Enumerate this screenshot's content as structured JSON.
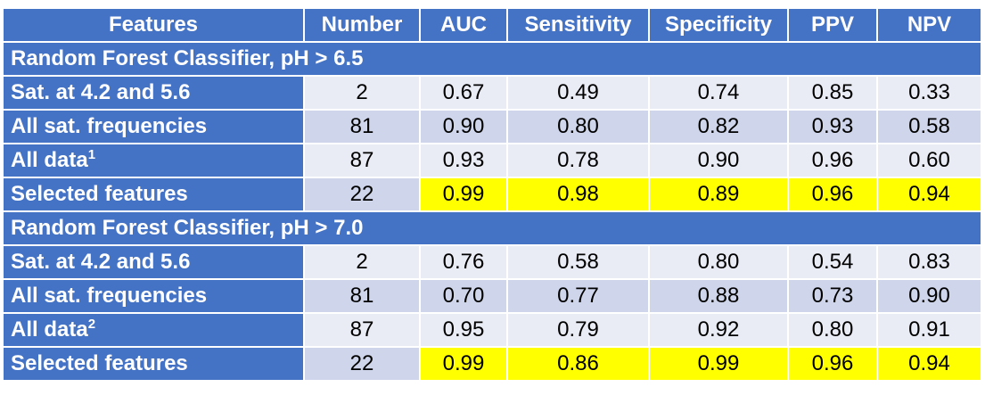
{
  "table": {
    "header": [
      "Features",
      "Number",
      "AUC",
      "Sensitivity",
      "Specificity",
      "PPV",
      "NPV"
    ],
    "sections": [
      {
        "title": "Random Forest Classifier, pH > 6.5",
        "rows": [
          {
            "label": "Sat. at 4.2 and 5.6",
            "cells": [
              "2",
              "0.67",
              "0.49",
              "0.74",
              "0.85",
              "0.33"
            ],
            "highlight": false
          },
          {
            "label": "All sat. frequencies",
            "cells": [
              "81",
              "0.90",
              "0.80",
              "0.82",
              "0.93",
              "0.58"
            ],
            "highlight": false
          },
          {
            "label": "All data",
            "note": "1",
            "cells": [
              "87",
              "0.93",
              "0.78",
              "0.90",
              "0.96",
              "0.60"
            ],
            "highlight": false
          },
          {
            "label": "Selected features",
            "cells": [
              "22",
              "0.99",
              "0.98",
              "0.89",
              "0.96",
              "0.94"
            ],
            "highlight": true
          }
        ]
      },
      {
        "title": "Random Forest Classifier, pH > 7.0",
        "rows": [
          {
            "label": "Sat. at 4.2 and 5.6",
            "cells": [
              "2",
              "0.76",
              "0.58",
              "0.80",
              "0.54",
              "0.83"
            ],
            "highlight": false
          },
          {
            "label": "All sat. frequencies",
            "cells": [
              "81",
              "0.70",
              "0.77",
              "0.88",
              "0.73",
              "0.90"
            ],
            "highlight": false
          },
          {
            "label": "All data",
            "note": "2",
            "cells": [
              "87",
              "0.95",
              "0.79",
              "0.92",
              "0.80",
              "0.91"
            ],
            "highlight": false
          },
          {
            "label": "Selected features",
            "cells": [
              "22",
              "0.99",
              "0.86",
              "0.99",
              "0.96",
              "0.94"
            ],
            "highlight": true
          }
        ]
      }
    ]
  }
}
